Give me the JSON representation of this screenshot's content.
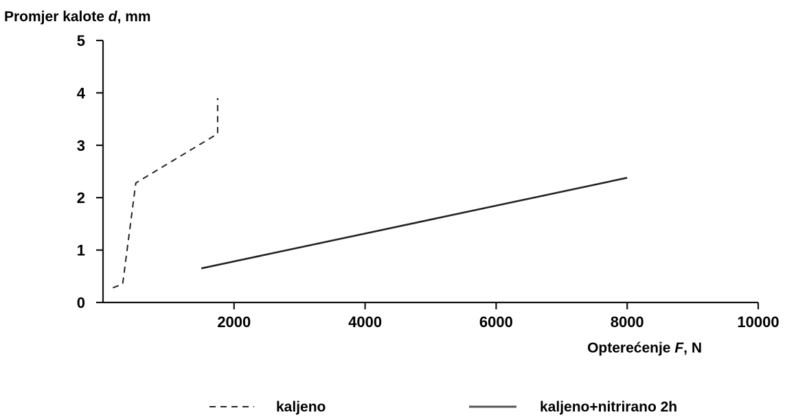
{
  "chart_data": {
    "type": "line",
    "ylabel": {
      "prefix": "Promjer kalote ",
      "var": "d",
      "suffix": ", mm"
    },
    "xlabel": {
      "prefix": "Opterećenje ",
      "var": "F",
      "suffix": ", N"
    },
    "xlim": [
      0,
      10000
    ],
    "ylim": [
      0,
      5
    ],
    "x_ticks": [
      2000,
      4000,
      6000,
      8000,
      10000
    ],
    "y_ticks": [
      0,
      1,
      2,
      3,
      4,
      5
    ],
    "grid": false,
    "legend_position": "bottom",
    "series": [
      {
        "name": "kaljeno",
        "style": "dashed",
        "color": "#222222",
        "points": [
          [
            150,
            0.28
          ],
          [
            300,
            0.35
          ],
          [
            500,
            2.28
          ],
          [
            1750,
            3.22
          ],
          [
            1750,
            3.9
          ]
        ]
      },
      {
        "name": "kaljeno+nitrirano 2h",
        "style": "solid",
        "color": "#222222",
        "points": [
          [
            1500,
            0.65
          ],
          [
            8000,
            2.38
          ]
        ]
      }
    ]
  }
}
